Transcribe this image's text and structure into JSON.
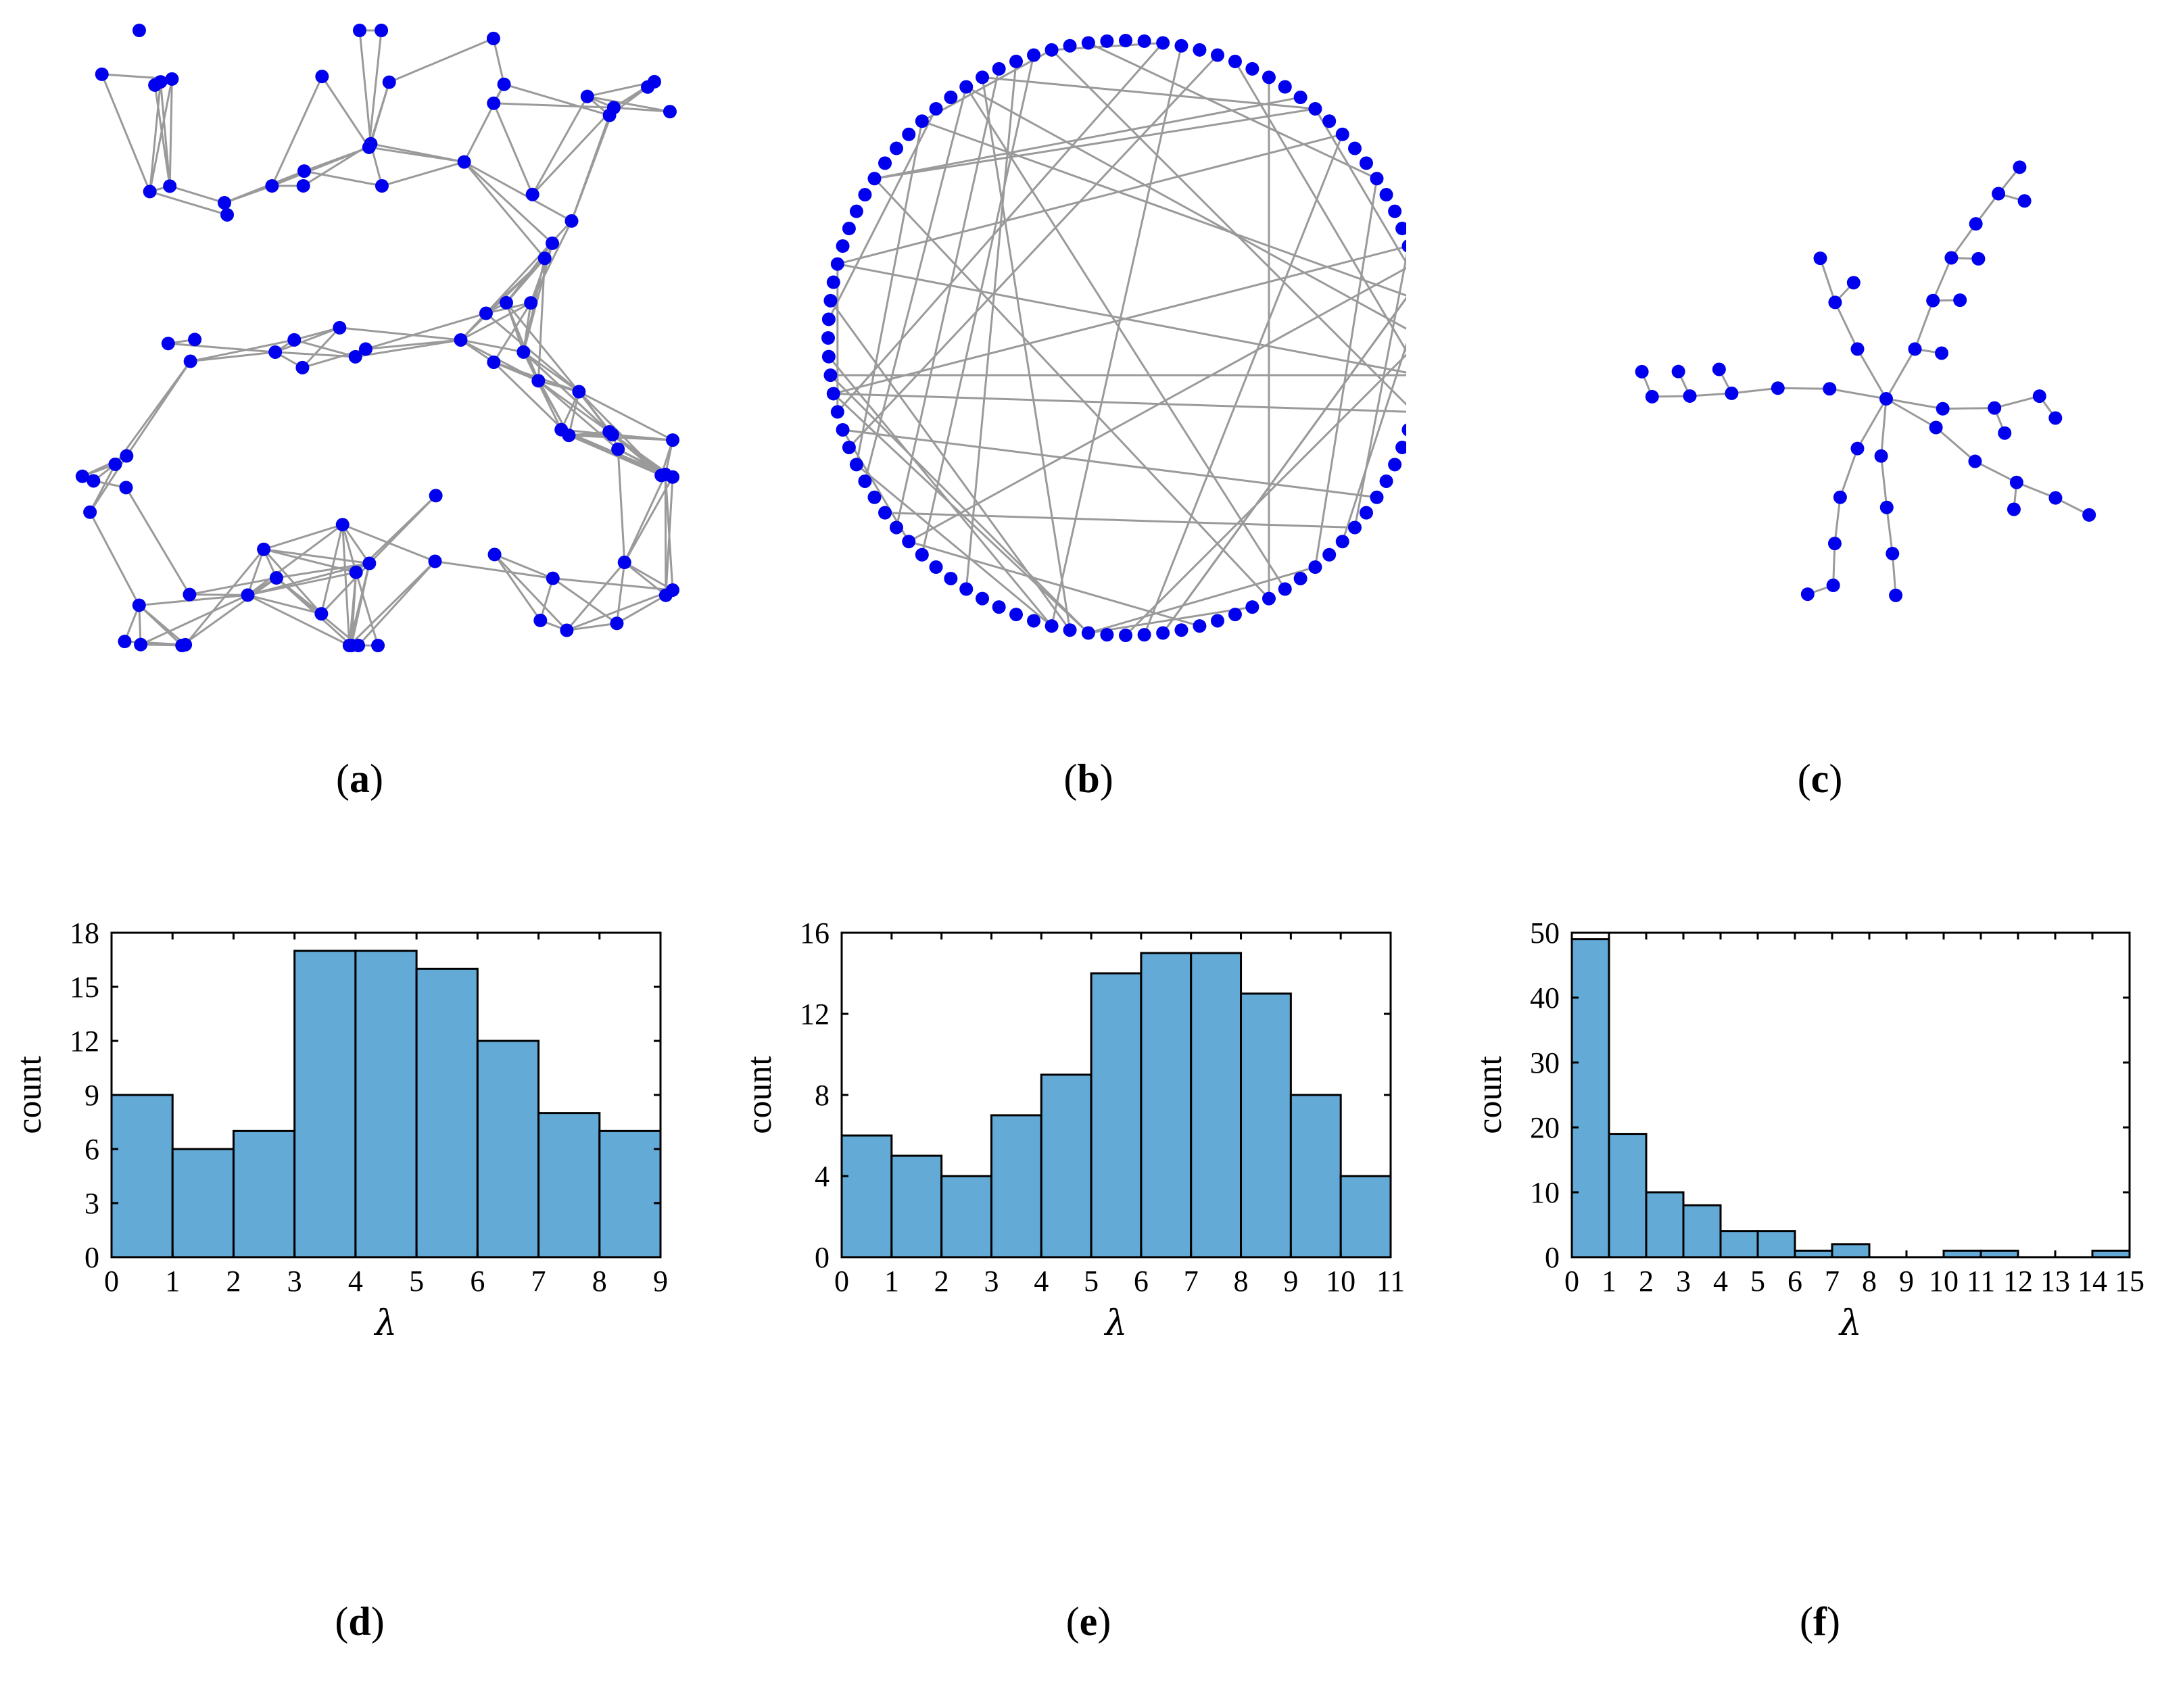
{
  "panels": {
    "a": {
      "label": "a"
    },
    "b": {
      "label": "b"
    },
    "c": {
      "label": "c"
    },
    "d": {
      "label": "d"
    },
    "e": {
      "label": "e"
    },
    "f": {
      "label": "f"
    }
  },
  "colors": {
    "node": "#0000ee",
    "edge": "#9a9a9a",
    "bar": "#64aad7"
  },
  "chart_data": [
    {
      "panel": "d",
      "type": "bar",
      "ylabel": "count",
      "xlabel": "λ",
      "bin_edges": [
        0,
        1,
        2,
        3,
        4,
        5,
        6,
        7,
        8,
        9
      ],
      "values": [
        9,
        6,
        7,
        17,
        17,
        16,
        12,
        8,
        7
      ],
      "xlim": [
        0,
        9
      ],
      "ylim": [
        0,
        18
      ],
      "xticks": [
        "0",
        "1",
        "2",
        "3",
        "4",
        "5",
        "6",
        "7",
        "8",
        "9"
      ],
      "yticks": [
        "0",
        "3",
        "6",
        "9",
        "12",
        "15",
        "18"
      ]
    },
    {
      "panel": "e",
      "type": "bar",
      "ylabel": "count",
      "xlabel": "λ",
      "bin_edges": [
        0,
        1,
        2,
        3,
        4,
        5,
        6,
        7,
        8,
        9,
        10,
        11
      ],
      "values": [
        6,
        5,
        4,
        7,
        9,
        14,
        15,
        15,
        13,
        8,
        4
      ],
      "xlim": [
        0,
        11
      ],
      "ylim": [
        0,
        16
      ],
      "xticks": [
        "0",
        "1",
        "2",
        "3",
        "4",
        "5",
        "6",
        "7",
        "8",
        "9",
        "10",
        "11"
      ],
      "yticks": [
        "0",
        "4",
        "8",
        "12",
        "16"
      ]
    },
    {
      "panel": "f",
      "type": "bar",
      "ylabel": "count",
      "xlabel": "λ",
      "bin_edges": [
        0,
        1,
        2,
        3,
        4,
        5,
        6,
        7,
        8,
        9,
        10,
        11,
        12,
        13,
        14,
        15
      ],
      "values": [
        49,
        19,
        10,
        8,
        4,
        4,
        1,
        2,
        0,
        0,
        1,
        1,
        0,
        0,
        1
      ],
      "xlim": [
        0,
        15
      ],
      "ylim": [
        0,
        50
      ],
      "xticks": [
        "0",
        "1",
        "2",
        "3",
        "4",
        "5",
        "6",
        "7",
        "8",
        "9",
        "10",
        "11",
        "12",
        "13",
        "14",
        "15"
      ],
      "yticks": [
        "0",
        "10",
        "20",
        "30",
        "40",
        "50"
      ]
    }
  ]
}
